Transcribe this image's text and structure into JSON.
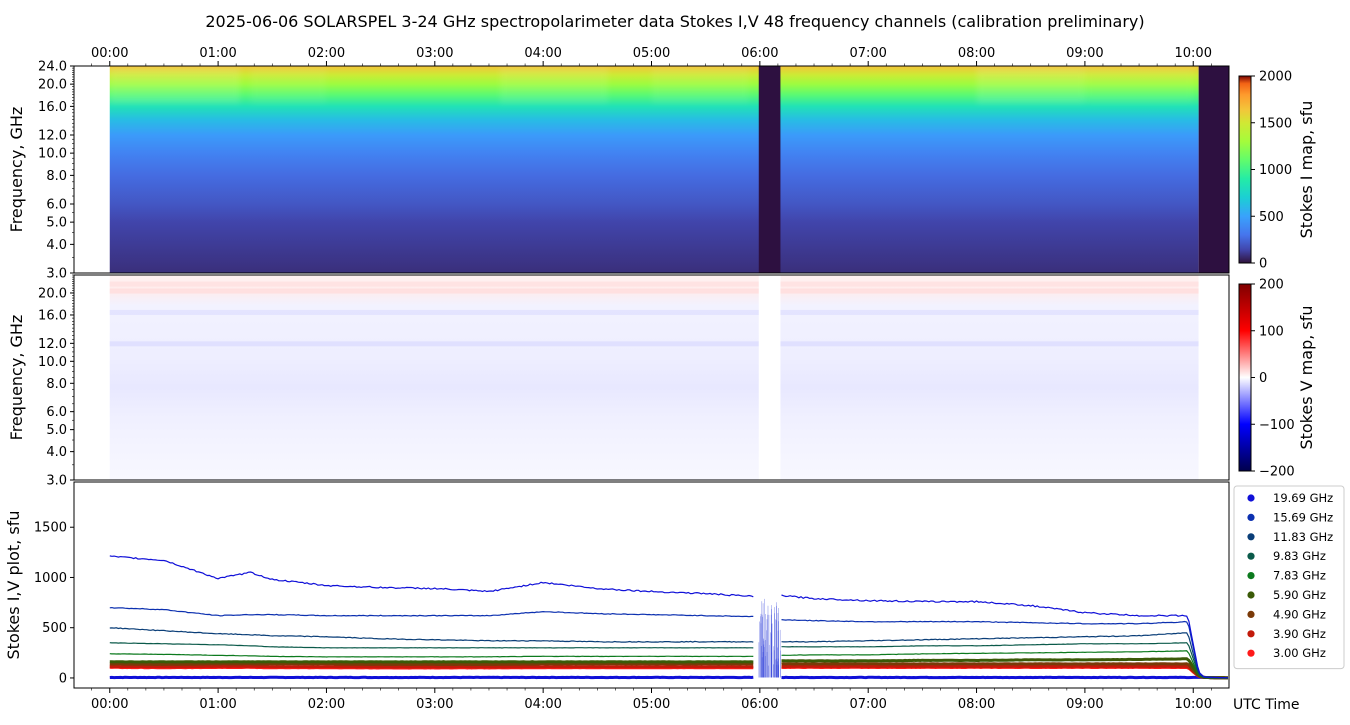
{
  "title": "2025-06-06  SOLARSPEL  3-24 GHz spectropolarimeter data   Stokes I,V   48 frequency channels   (calibration preliminary)",
  "time_ticks": [
    "00:00",
    "01:00",
    "02:00",
    "03:00",
    "04:00",
    "05:00",
    "06:00",
    "07:00",
    "08:00",
    "09:00",
    "10:00"
  ],
  "xlabel": "UTC Time",
  "colors": {
    "axis": "#000000",
    "gap": "#2d1040",
    "legend_border": "#cccccc"
  },
  "chart_data": [
    {
      "type": "heatmap",
      "name": "stokes-i-map",
      "ylabel": "Frequency, GHz",
      "yscale": "log",
      "ylim": [
        3.0,
        24.0
      ],
      "xlim_hours": [
        -0.33,
        10.33
      ],
      "data_start_hours": 0.0,
      "data_end_hours": 10.05,
      "gaps_hours": [
        [
          5.99,
          6.19
        ],
        [
          10.05,
          10.33
        ]
      ],
      "yticks": [
        "24.0",
        "20.0",
        "16.0",
        "12.0",
        "10.0",
        "8.0",
        "6.0",
        "5.0",
        "4.0",
        "3.0"
      ],
      "ytick_values": [
        24,
        20,
        16,
        12,
        10,
        8,
        6,
        5,
        4,
        3
      ],
      "colorbar": {
        "label": "Stokes I map, sfu",
        "min": 0,
        "max": 2000,
        "ticks": [
          "2000",
          "1500",
          "1000",
          "500",
          "0"
        ],
        "tick_values": [
          2000,
          1500,
          1000,
          500,
          0
        ],
        "colormap": "turbo"
      },
      "approx_intensity_profile_sfu": [
        {
          "freq_ghz": 3.0,
          "value": 80
        },
        {
          "freq_ghz": 5.0,
          "value": 140
        },
        {
          "freq_ghz": 6.0,
          "value": 200
        },
        {
          "freq_ghz": 8.0,
          "value": 270
        },
        {
          "freq_ghz": 10.0,
          "value": 360
        },
        {
          "freq_ghz": 12.0,
          "value": 470
        },
        {
          "freq_ghz": 14.0,
          "value": 620
        },
        {
          "freq_ghz": 16.0,
          "value": 830
        },
        {
          "freq_ghz": 18.0,
          "value": 1080
        },
        {
          "freq_ghz": 20.0,
          "value": 1280
        },
        {
          "freq_ghz": 22.0,
          "value": 1480
        },
        {
          "freq_ghz": 24.0,
          "value": 1650
        }
      ]
    },
    {
      "type": "heatmap",
      "name": "stokes-v-map",
      "ylabel": "Frequency, GHz",
      "yscale": "log",
      "ylim": [
        3.0,
        24.0
      ],
      "yticks": [
        "20.0",
        "16.0",
        "12.0",
        "10.0",
        "8.0",
        "6.0",
        "5.0",
        "4.0",
        "3.0"
      ],
      "ytick_values": [
        20,
        16,
        12,
        10,
        8,
        6,
        5,
        4,
        3
      ],
      "colorbar": {
        "label": "Stokes V map, sfu",
        "min": -200,
        "max": 200,
        "ticks": [
          "200",
          "100",
          "0",
          "−100",
          "−200"
        ],
        "tick_values": [
          200,
          100,
          0,
          -100,
          -200
        ],
        "colormap": "seismic"
      }
    },
    {
      "type": "line",
      "name": "stokes-iv-plot",
      "ylabel": "Stokes I,V plot, sfu",
      "ylim": [
        -100,
        1950
      ],
      "yticks": [
        "0",
        "500",
        "1000",
        "1500"
      ],
      "ytick_values": [
        0,
        500,
        1000,
        1500
      ],
      "x_hours": [
        0.0,
        0.5,
        1.0,
        1.3,
        1.5,
        2.0,
        2.5,
        3.0,
        3.5,
        4.0,
        4.5,
        5.0,
        5.5,
        5.95,
        6.2,
        6.5,
        7.0,
        7.5,
        8.0,
        8.5,
        9.0,
        9.5,
        9.95,
        10.05,
        10.1,
        10.33
      ],
      "series": [
        {
          "name": "19.69 GHz",
          "color": "#1010d8",
          "values": [
            1210,
            1170,
            990,
            1050,
            980,
            920,
            900,
            890,
            860,
            950,
            890,
            860,
            840,
            810,
            820,
            790,
            770,
            760,
            760,
            720,
            650,
            620,
            620,
            60,
            10,
            0
          ]
        },
        {
          "name": "15.69 GHz",
          "color": "#0c30b0",
          "values": [
            700,
            680,
            620,
            630,
            630,
            620,
            620,
            620,
            620,
            660,
            640,
            630,
            620,
            610,
            580,
            570,
            560,
            560,
            560,
            550,
            540,
            540,
            560,
            50,
            10,
            0
          ]
        },
        {
          "name": "11.83 GHz",
          "color": "#0a3e78",
          "values": [
            500,
            470,
            440,
            430,
            420,
            410,
            390,
            380,
            370,
            370,
            360,
            360,
            360,
            360,
            360,
            360,
            370,
            380,
            390,
            400,
            410,
            420,
            450,
            40,
            5,
            0
          ]
        },
        {
          "name": "9.83 GHz",
          "color": "#0b5a4a",
          "values": [
            350,
            340,
            330,
            320,
            310,
            300,
            300,
            300,
            300,
            300,
            300,
            300,
            300,
            300,
            310,
            310,
            310,
            320,
            320,
            330,
            340,
            340,
            350,
            35,
            5,
            0
          ]
        },
        {
          "name": "7.83 GHz",
          "color": "#0c7a1e",
          "values": [
            240,
            235,
            225,
            220,
            215,
            210,
            210,
            210,
            210,
            215,
            215,
            215,
            215,
            215,
            225,
            230,
            230,
            240,
            245,
            250,
            255,
            260,
            270,
            30,
            5,
            0
          ]
        },
        {
          "name": "5.90 GHz",
          "color": "#3a5a08",
          "values": [
            160,
            160,
            160,
            160,
            160,
            160,
            160,
            160,
            160,
            160,
            160,
            160,
            160,
            160,
            170,
            170,
            170,
            175,
            175,
            180,
            180,
            185,
            190,
            25,
            5,
            0
          ]
        },
        {
          "name": "4.90 GHz",
          "color": "#7a3a08",
          "values": [
            140,
            135,
            140,
            140,
            140,
            140,
            135,
            135,
            135,
            140,
            140,
            140,
            140,
            140,
            140,
            140,
            140,
            140,
            140,
            140,
            140,
            140,
            140,
            20,
            5,
            0
          ]
        },
        {
          "name": "3.90 GHz",
          "color": "#c21a0a",
          "values": [
            115,
            112,
            115,
            115,
            112,
            112,
            110,
            110,
            110,
            112,
            112,
            112,
            112,
            112,
            115,
            115,
            115,
            115,
            115,
            115,
            115,
            115,
            115,
            18,
            5,
            0
          ]
        },
        {
          "name": "3.00 GHz",
          "color": "#ff1a1a",
          "values": [
            105,
            102,
            105,
            105,
            102,
            102,
            100,
            100,
            100,
            102,
            102,
            102,
            102,
            102,
            105,
            105,
            105,
            105,
            105,
            105,
            105,
            105,
            105,
            15,
            5,
            0
          ]
        },
        {
          "color": "#1010d8",
          "values": [
            5,
            5,
            5,
            5,
            5,
            5,
            5,
            5,
            5,
            5,
            5,
            5,
            5,
            5,
            5,
            5,
            5,
            5,
            5,
            5,
            5,
            5,
            5,
            5,
            5,
            0
          ]
        }
      ],
      "legend_placement": "right"
    }
  ]
}
